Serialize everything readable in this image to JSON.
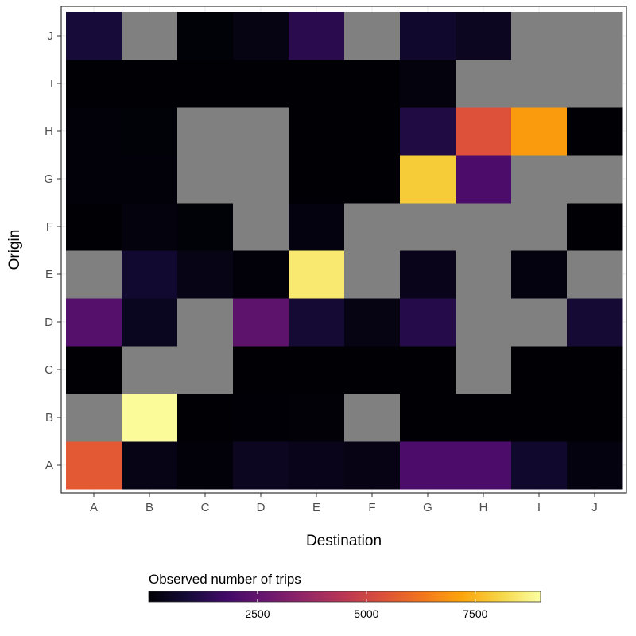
{
  "chart_data": {
    "type": "heatmap",
    "xlabel": "Destination",
    "ylabel": "Origin",
    "x_categories": [
      "A",
      "B",
      "C",
      "D",
      "E",
      "F",
      "G",
      "H",
      "I",
      "J"
    ],
    "y_categories": [
      "A",
      "B",
      "C",
      "D",
      "E",
      "F",
      "G",
      "H",
      "I",
      "J"
    ],
    "na_color": "#808080",
    "panel_border_color": "#333333",
    "grid": true,
    "legend": {
      "title": "Observed number of trips",
      "position": "bottom",
      "colormap": "inferno",
      "min": 0,
      "max": 9000,
      "ticks": [
        2500,
        5000,
        7500
      ],
      "tick_labels": [
        "2500",
        "5000",
        "7500"
      ]
    },
    "rows": [
      {
        "origin": "A",
        "values": [
          5600,
          300,
          80,
          500,
          350,
          280,
          2000,
          2000,
          700,
          200
        ]
      },
      {
        "origin": "B",
        "values": [
          null,
          8900,
          20,
          40,
          50,
          null,
          20,
          20,
          20,
          20
        ]
      },
      {
        "origin": "C",
        "values": [
          10,
          null,
          null,
          10,
          10,
          10,
          10,
          null,
          10,
          10
        ]
      },
      {
        "origin": "D",
        "values": [
          2200,
          450,
          null,
          2400,
          800,
          250,
          1200,
          null,
          null,
          800
        ]
      },
      {
        "origin": "E",
        "values": [
          null,
          750,
          300,
          80,
          8500,
          null,
          350,
          null,
          200,
          null
        ]
      },
      {
        "origin": "F",
        "values": [
          10,
          150,
          60,
          null,
          200,
          null,
          null,
          null,
          null,
          10
        ]
      },
      {
        "origin": "G",
        "values": [
          80,
          80,
          null,
          null,
          10,
          10,
          7900,
          2000,
          null,
          null
        ]
      },
      {
        "origin": "H",
        "values": [
          80,
          60,
          null,
          null,
          10,
          10,
          1100,
          5400,
          7000,
          10
        ]
      },
      {
        "origin": "I",
        "values": [
          10,
          10,
          10,
          10,
          10,
          10,
          150,
          null,
          null,
          null
        ]
      },
      {
        "origin": "J",
        "values": [
          900,
          null,
          60,
          250,
          1300,
          null,
          700,
          500,
          null,
          null
        ]
      }
    ]
  }
}
